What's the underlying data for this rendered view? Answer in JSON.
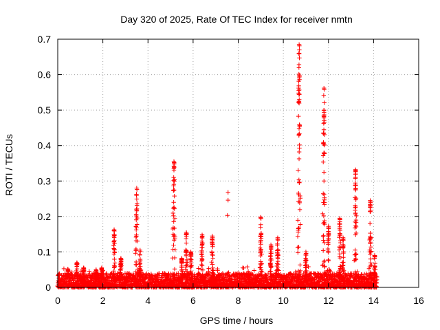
{
  "chart_data": {
    "type": "scatter",
    "title": "Day 320 of 2025, Rate Of TEC Index for receiver nmtn",
    "xlabel": "GPS time / hours",
    "ylabel": "ROTI / TECUs",
    "xlim": [
      0,
      16
    ],
    "ylim": [
      0,
      0.7
    ],
    "x_ticks": [
      "0",
      "2",
      "4",
      "6",
      "8",
      "10",
      "12",
      "14",
      "16"
    ],
    "y_ticks": [
      "0",
      "0.1",
      "0.2",
      "0.3",
      "0.4",
      "0.5",
      "0.6",
      "0.7"
    ],
    "grid": true,
    "marker": "+",
    "marker_color": "#ff0000",
    "baseline": {
      "x_start": 0.0,
      "x_end": 14.15,
      "typical_min": 0.0,
      "typical_max": 0.04
    },
    "bursts": [
      {
        "x": 0.45,
        "peak": 0.052
      },
      {
        "x": 0.85,
        "peak": 0.07
      },
      {
        "x": 1.15,
        "peak": 0.055
      },
      {
        "x": 1.7,
        "peak": 0.05
      },
      {
        "x": 1.95,
        "peak": 0.055
      },
      {
        "x": 2.5,
        "peak": 0.163
      },
      {
        "x": 2.8,
        "peak": 0.082
      },
      {
        "x": 3.5,
        "peak": 0.28
      },
      {
        "x": 3.65,
        "peak": 0.105
      },
      {
        "x": 5.15,
        "peak": 0.355
      },
      {
        "x": 5.5,
        "peak": 0.082
      },
      {
        "x": 5.7,
        "peak": 0.155
      },
      {
        "x": 5.9,
        "peak": 0.1
      },
      {
        "x": 6.4,
        "peak": 0.148
      },
      {
        "x": 6.85,
        "peak": 0.145
      },
      {
        "x": 9.0,
        "peak": 0.198
      },
      {
        "x": 9.45,
        "peak": 0.12
      },
      {
        "x": 9.75,
        "peak": 0.14
      },
      {
        "x": 10.7,
        "peak": 0.685
      },
      {
        "x": 11.0,
        "peak": 0.1
      },
      {
        "x": 11.8,
        "peak": 0.562
      },
      {
        "x": 12.0,
        "peak": 0.172
      },
      {
        "x": 12.5,
        "peak": 0.195
      },
      {
        "x": 12.65,
        "peak": 0.14
      },
      {
        "x": 13.2,
        "peak": 0.332
      },
      {
        "x": 13.85,
        "peak": 0.245
      },
      {
        "x": 14.05,
        "peak": 0.09
      }
    ],
    "isolated_points": [
      {
        "x": 7.55,
        "y": 0.268
      },
      {
        "x": 7.55,
        "y": 0.246
      },
      {
        "x": 7.52,
        "y": 0.203
      },
      {
        "x": 8.2,
        "y": 0.055
      },
      {
        "x": 8.4,
        "y": 0.058
      }
    ]
  }
}
